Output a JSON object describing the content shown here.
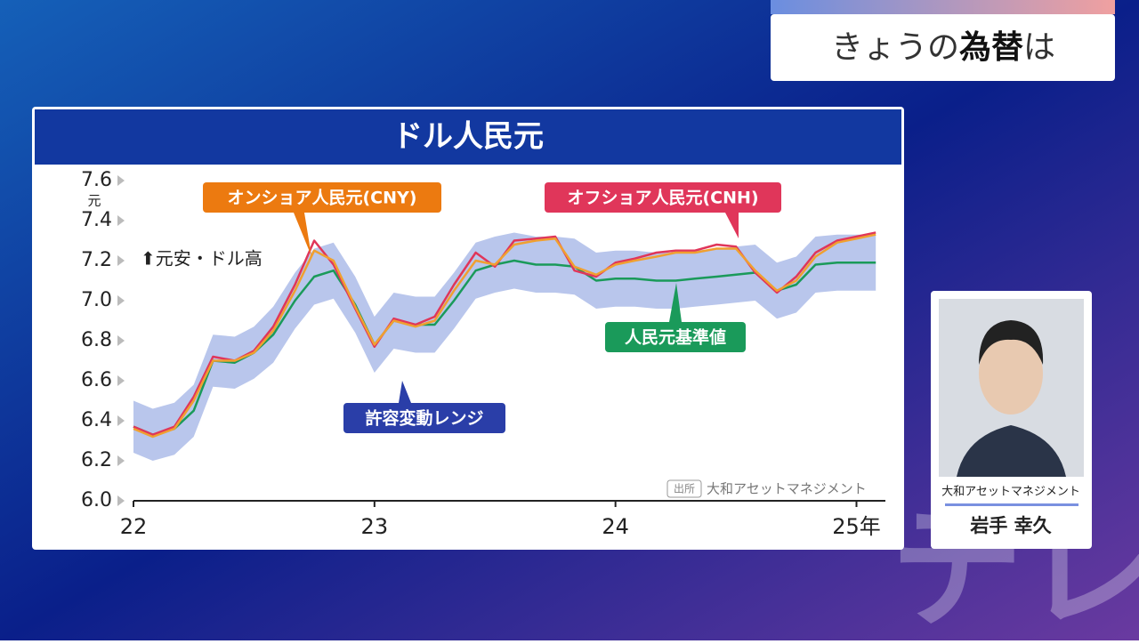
{
  "header": {
    "title_parts": [
      "きょうの",
      "為替",
      "は"
    ]
  },
  "chart_data": {
    "type": "line",
    "title": "ドル人民元",
    "y_unit": "元",
    "note": "⬆元安・ドル高",
    "source_tag": "出所",
    "source": "大和アセットマネジメント",
    "x": [
      22,
      22.08,
      22.17,
      22.25,
      22.33,
      22.42,
      22.5,
      22.58,
      22.67,
      22.75,
      22.83,
      22.92,
      23,
      23.08,
      23.17,
      23.25,
      23.33,
      23.42,
      23.5,
      23.58,
      23.67,
      23.75,
      23.83,
      23.92,
      24,
      24.08,
      24.17,
      24.25,
      24.33,
      24.42,
      24.5,
      24.58,
      24.67,
      24.75,
      24.83,
      24.92,
      25,
      25.08
    ],
    "xlim": [
      22,
      25.12
    ],
    "xticks": [
      22,
      23,
      24,
      {
        "value": 25,
        "label": "25年"
      }
    ],
    "ylim": [
      6,
      7.6
    ],
    "yticks": [
      {
        "value": 6,
        "label": "6.0"
      },
      6.2,
      6.4,
      6.6,
      6.8,
      {
        "value": 7,
        "label": "7.0"
      },
      7.2,
      7.4,
      7.6
    ],
    "band": {
      "name": "許容変動レンジ",
      "color": "#b9c6ec",
      "upper": [
        6.5,
        6.46,
        6.49,
        6.58,
        6.83,
        6.82,
        6.87,
        6.97,
        7.14,
        7.26,
        7.29,
        7.12,
        6.92,
        7.04,
        7.02,
        7.02,
        7.14,
        7.29,
        7.32,
        7.34,
        7.32,
        7.32,
        7.31,
        7.24,
        7.25,
        7.25,
        7.24,
        7.24,
        7.25,
        7.26,
        7.27,
        7.28,
        7.19,
        7.22,
        7.32,
        7.33,
        7.33,
        7.33
      ],
      "lower": [
        6.24,
        6.2,
        6.23,
        6.32,
        6.57,
        6.56,
        6.61,
        6.69,
        6.86,
        6.98,
        7.01,
        6.84,
        6.64,
        6.76,
        6.74,
        6.74,
        6.86,
        7.01,
        7.04,
        7.06,
        7.04,
        7.04,
        7.03,
        6.96,
        6.97,
        6.97,
        6.96,
        6.96,
        6.97,
        6.98,
        6.99,
        7,
        6.91,
        6.94,
        7.04,
        7.05,
        7.05,
        7.05
      ]
    },
    "series": [
      {
        "name": "人民元基準値",
        "color": "#1a9a5a",
        "values": [
          6.37,
          6.33,
          6.36,
          6.45,
          6.7,
          6.69,
          6.74,
          6.83,
          7,
          7.12,
          7.15,
          6.98,
          6.78,
          6.9,
          6.88,
          6.88,
          7,
          7.15,
          7.18,
          7.2,
          7.18,
          7.18,
          7.17,
          7.1,
          7.11,
          7.11,
          7.1,
          7.1,
          7.11,
          7.12,
          7.13,
          7.14,
          7.05,
          7.08,
          7.18,
          7.19,
          7.19,
          7.19
        ]
      },
      {
        "name": "オフショア人民元(CNH)",
        "color": "#e0365a",
        "values": [
          6.37,
          6.33,
          6.37,
          6.52,
          6.72,
          6.7,
          6.75,
          6.87,
          7.08,
          7.3,
          7.18,
          6.96,
          6.77,
          6.91,
          6.88,
          6.92,
          7.08,
          7.24,
          7.17,
          7.3,
          7.31,
          7.32,
          7.15,
          7.12,
          7.19,
          7.21,
          7.24,
          7.25,
          7.25,
          7.28,
          7.27,
          7.14,
          7.04,
          7.12,
          7.24,
          7.3,
          7.32,
          7.34
        ]
      },
      {
        "name": "オンショア人民元(CNY)",
        "color": "#f0a030",
        "values": [
          6.36,
          6.32,
          6.36,
          6.5,
          6.7,
          6.7,
          6.74,
          6.85,
          7.05,
          7.25,
          7.2,
          6.97,
          6.78,
          6.9,
          6.87,
          6.9,
          7.05,
          7.2,
          7.18,
          7.28,
          7.3,
          7.31,
          7.17,
          7.13,
          7.18,
          7.2,
          7.22,
          7.24,
          7.24,
          7.26,
          7.26,
          7.15,
          7.05,
          7.1,
          7.22,
          7.29,
          7.31,
          7.33
        ]
      }
    ]
  },
  "presenter": {
    "company": "大和アセットマネジメント",
    "name": "岩手 幸久"
  },
  "watermark": "テレ東"
}
